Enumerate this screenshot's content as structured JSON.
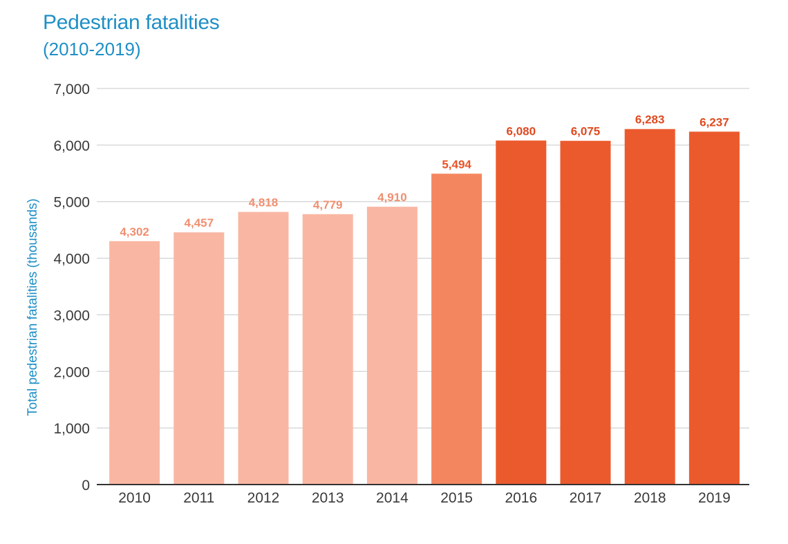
{
  "chart_data": {
    "type": "bar",
    "title": "Pedestrian fatalities",
    "subtitle": "(2010-2019)",
    "ylabel": "Total pedestrian fatalities (thousands)",
    "xlabel": "",
    "categories": [
      "2010",
      "2011",
      "2012",
      "2013",
      "2014",
      "2015",
      "2016",
      "2017",
      "2018",
      "2019"
    ],
    "values": [
      4302,
      4457,
      4818,
      4779,
      4910,
      5494,
      6080,
      6075,
      6283,
      6237
    ],
    "value_labels": [
      "4,302",
      "4,457",
      "4,818",
      "4,779",
      "4,910",
      "5,494",
      "6,080",
      "6,075",
      "6,283",
      "6,237"
    ],
    "ylim": [
      0,
      7000
    ],
    "yticks": [
      0,
      1000,
      2000,
      3000,
      4000,
      5000,
      6000,
      7000
    ],
    "ytick_labels": [
      "0",
      "1,000",
      "2,000",
      "3,000",
      "4,000",
      "5,000",
      "6,000",
      "7,000"
    ],
    "grid": true,
    "bar_colors": [
      "#f9b7a3",
      "#f9b7a3",
      "#f9b7a3",
      "#f9b7a3",
      "#f9b7a3",
      "#f4865f",
      "#eb5a2d",
      "#eb5a2d",
      "#eb5a2d",
      "#eb5a2d"
    ],
    "label_colors": [
      "#f08f70",
      "#f08f70",
      "#f08f70",
      "#f08f70",
      "#f08f70",
      "#e8552a",
      "#e04a1f",
      "#e04a1f",
      "#e04a1f",
      "#e04a1f"
    ],
    "colors": {
      "title": "#1f8fc6",
      "grid": "#c8c8c8",
      "axis": "#333333"
    }
  }
}
